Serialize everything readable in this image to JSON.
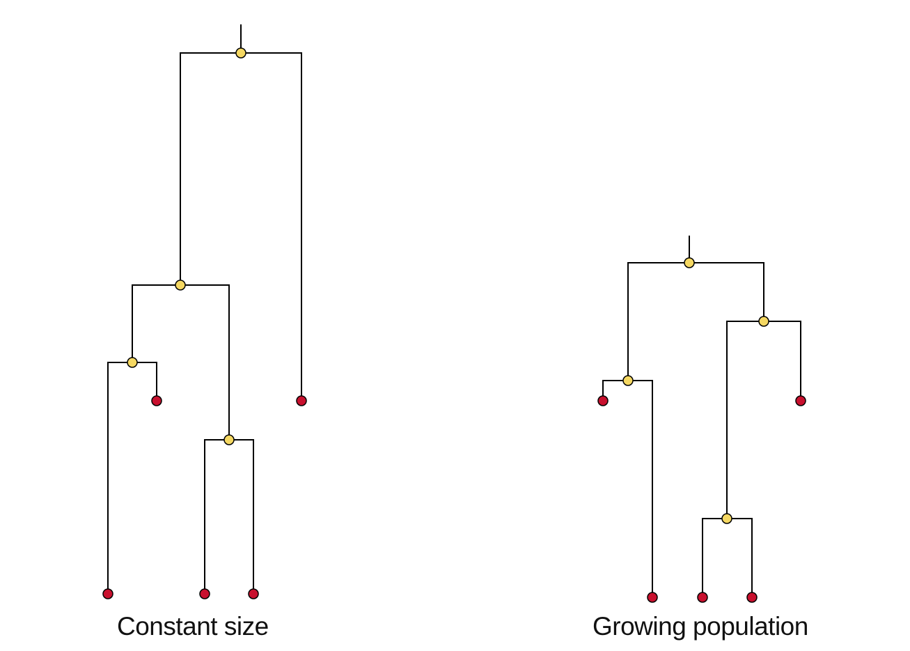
{
  "colors": {
    "branch": "#000000",
    "internal_node": "#f5d862",
    "tip_node": "#c8102e"
  },
  "trees": [
    {
      "id": "constant",
      "caption": "Constant size"
    },
    {
      "id": "growing",
      "caption": "Growing population"
    }
  ]
}
